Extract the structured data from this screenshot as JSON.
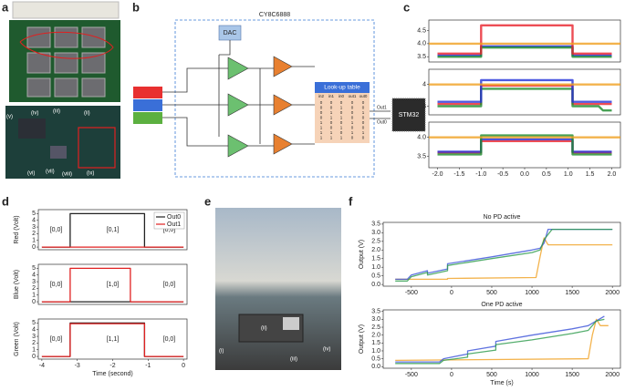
{
  "panel_labels": [
    "a",
    "b",
    "c",
    "d",
    "e",
    "f"
  ],
  "panel_a": {
    "labels": [
      "(i)",
      "(ii)",
      "(iii)",
      "(iv)",
      "(v)",
      "(vi)",
      "(vii)",
      "(viii)",
      "(ix)"
    ]
  },
  "panel_b": {
    "chip": "CY8C6888",
    "dac": "DAC",
    "lut_title": "Look-up table",
    "mcu": "STM32",
    "outputs": [
      "Out1",
      "Out0"
    ],
    "lut": {
      "header": [
        "in2",
        "in1",
        "in0",
        "out1",
        "out0"
      ],
      "rows": [
        [
          0,
          0,
          0,
          0,
          0
        ],
        [
          0,
          0,
          1,
          0,
          0
        ],
        [
          0,
          1,
          0,
          0,
          1
        ],
        [
          0,
          1,
          1,
          0,
          0
        ],
        [
          1,
          0,
          0,
          1,
          0
        ],
        [
          1,
          0,
          1,
          0,
          0
        ],
        [
          1,
          1,
          0,
          1,
          1
        ],
        [
          1,
          1,
          1,
          0,
          0
        ]
      ]
    }
  },
  "panel_e": {
    "labels": [
      "(i)",
      "(ii)",
      "(iii)",
      "(iv)"
    ]
  },
  "chart_data": [
    {
      "type": "line",
      "xlim": [
        -2.2,
        2.2
      ],
      "ylim": [
        3.3,
        4.9
      ],
      "yticks": [
        3.5,
        {
          "value": 4.0,
          "label": "4.0"
        },
        4.5
      ],
      "series": [
        {
          "color": "#2230d8",
          "x": [
            -2,
            -1,
            -1,
            1.1,
            1.1,
            2
          ],
          "values": [
            3.55,
            3.55,
            3.9,
            3.9,
            3.55,
            3.55
          ]
        },
        {
          "color": "#1a8a2a",
          "x": [
            -2,
            -1,
            -1,
            1.1,
            1.1,
            2
          ],
          "values": [
            3.5,
            3.5,
            3.85,
            3.85,
            3.5,
            3.5
          ]
        },
        {
          "color": "#e8202a",
          "x": [
            -2,
            -1,
            -1,
            1.1,
            1.1,
            2
          ],
          "values": [
            3.62,
            3.62,
            4.7,
            4.7,
            3.62,
            3.62
          ]
        },
        {
          "color": "#f0a020",
          "x": [
            -2.2,
            2.2
          ],
          "values": [
            4.0,
            4.0
          ]
        }
      ]
    },
    {
      "type": "line",
      "xlim": [
        -2.2,
        2.2
      ],
      "ylim": [
        2.6,
        4.7
      ],
      "yticks": [
        3,
        4
      ],
      "series": [
        {
          "color": "#e8202a",
          "x": [
            -2,
            -1,
            -1,
            1.1,
            1.1,
            2
          ],
          "values": [
            3.1,
            3.1,
            3.95,
            3.95,
            3.1,
            3.1
          ]
        },
        {
          "color": "#1a8a2a",
          "x": [
            -2,
            -1,
            -1,
            1.1,
            1.1,
            1.7,
            1.8,
            2
          ],
          "values": [
            3.0,
            3.0,
            3.8,
            3.8,
            3.0,
            3.0,
            2.8,
            2.8
          ]
        },
        {
          "color": "#2230d8",
          "x": [
            -2,
            -1,
            -1,
            1.1,
            1.1,
            2
          ],
          "values": [
            3.2,
            3.2,
            4.2,
            4.2,
            3.2,
            3.2
          ]
        },
        {
          "color": "#f0a020",
          "x": [
            -2.2,
            2.2
          ],
          "values": [
            4.0,
            4.0
          ]
        }
      ]
    },
    {
      "type": "line",
      "xlim": [
        -2.2,
        2.2
      ],
      "ylim": [
        3.2,
        4.4
      ],
      "xticks": [
        {
          "value": -2.0,
          "label": "-2.0"
        },
        -1.5,
        {
          "value": -1.0,
          "label": "-1.0"
        },
        -0.5,
        {
          "value": 0.0,
          "label": "0.0"
        },
        0.5,
        {
          "value": 1.0,
          "label": "1.0"
        },
        1.5,
        {
          "value": 2.0,
          "label": "2.0"
        }
      ],
      "yticks": [
        3.5,
        {
          "value": 4.0,
          "label": "4.0"
        }
      ],
      "series": [
        {
          "color": "#e8202a",
          "x": [
            -2,
            -1,
            -1,
            1.1,
            1.1,
            2
          ],
          "values": [
            3.6,
            3.6,
            3.9,
            3.9,
            3.6,
            3.6
          ]
        },
        {
          "color": "#2230d8",
          "x": [
            -2,
            -1,
            -1,
            1.1,
            1.1,
            2
          ],
          "values": [
            3.62,
            3.62,
            3.95,
            3.95,
            3.62,
            3.62
          ]
        },
        {
          "color": "#1a8a2a",
          "x": [
            -2,
            -1,
            -1,
            1.1,
            1.1,
            2
          ],
          "values": [
            3.55,
            3.55,
            4.05,
            4.05,
            3.55,
            3.55
          ]
        },
        {
          "color": "#f0a020",
          "x": [
            -2.2,
            2.2
          ],
          "values": [
            4.0,
            4.0
          ]
        }
      ]
    },
    {
      "type": "line",
      "xlim": [
        -4.1,
        0.1
      ],
      "ylim": [
        -0.4,
        5.6
      ],
      "yticks": [
        0,
        1,
        2,
        3,
        4,
        5
      ],
      "ylabel": "Red (Volt)",
      "legend": "upper right",
      "annotations": [
        "[0,0]",
        "[0,1]",
        "[0,0]"
      ],
      "series": [
        {
          "name": "Out0",
          "color": "#222222",
          "x": [
            -4,
            -3.2,
            -3.2,
            -1.1,
            -1.1,
            0
          ],
          "values": [
            0,
            0,
            5,
            5,
            0,
            0
          ]
        },
        {
          "name": "Out1",
          "color": "#e02020",
          "x": [
            -4,
            0
          ],
          "values": [
            0,
            0
          ]
        }
      ]
    },
    {
      "type": "line",
      "xlim": [
        -4.1,
        0.1
      ],
      "ylim": [
        -0.4,
        5.6
      ],
      "yticks": [
        0,
        1,
        2,
        3,
        4,
        5
      ],
      "ylabel": "Blue (Volt)",
      "annotations": [
        "[0,0]",
        "[1,0]",
        "[0,0]"
      ],
      "series": [
        {
          "color": "#222222",
          "x": [
            -4,
            0
          ],
          "values": [
            0,
            0
          ]
        },
        {
          "color": "#e02020",
          "x": [
            -4,
            -3.2,
            -3.2,
            -1.5,
            -1.5,
            0
          ],
          "values": [
            0,
            0,
            5,
            5,
            0,
            0
          ]
        }
      ]
    },
    {
      "type": "line",
      "xlim": [
        -4.1,
        0.1
      ],
      "ylim": [
        -0.4,
        5.6
      ],
      "xticks": [
        -4,
        -3,
        -2,
        -1,
        0
      ],
      "yticks": [
        0,
        1,
        2,
        3,
        4,
        5
      ],
      "ylabel": "Green (Volt)",
      "xlabel": "Time (second)",
      "annotations": [
        "[0,0]",
        "[1,1]",
        "[0,0]"
      ],
      "series": [
        {
          "color": "#222222",
          "x": [
            -4,
            -3.2,
            -3.2,
            -1.1,
            -1.1,
            0
          ],
          "values": [
            0,
            0,
            5,
            5,
            0,
            0
          ]
        },
        {
          "color": "#e02020",
          "x": [
            -4,
            -3.2,
            -3.2,
            -1.1,
            -1.1,
            0
          ],
          "values": [
            0,
            0,
            4.9,
            4.9,
            0,
            0
          ]
        }
      ]
    },
    {
      "type": "line",
      "title": "No PD active",
      "xlim": [
        -850,
        2100
      ],
      "ylim": [
        -0.1,
        3.6
      ],
      "ylabel": "Output (V)",
      "xticks": [
        -500,
        0,
        500,
        1000,
        1500,
        2000
      ],
      "yticks": [
        {
          "value": 0.0,
          "label": "0.0"
        },
        0.5,
        {
          "value": 1.0,
          "label": "1.0"
        },
        1.5,
        {
          "value": 2.0,
          "label": "2.0"
        },
        2.5,
        {
          "value": 3.0,
          "label": "3.0"
        },
        3.5
      ],
      "series": [
        {
          "color": "#f0a020",
          "x": [
            -700,
            -50,
            -50,
            1050,
            1100,
            1150,
            1200,
            2000
          ],
          "values": [
            0.3,
            0.3,
            0.35,
            0.4,
            1.6,
            2.7,
            2.3,
            2.3
          ]
        },
        {
          "color": "#3850d8",
          "x": [
            -700,
            -550,
            -500,
            -300,
            -300,
            -50,
            -50,
            500,
            1000,
            1100,
            1150,
            1200,
            2000
          ],
          "values": [
            0.3,
            0.3,
            0.55,
            0.8,
            0.65,
            0.9,
            1.2,
            1.6,
            2.0,
            2.1,
            2.4,
            3.2,
            3.2
          ]
        },
        {
          "color": "#2a9a4a",
          "x": [
            -700,
            -550,
            -500,
            -300,
            -300,
            -50,
            -50,
            500,
            1000,
            1100,
            1150,
            1250,
            2000
          ],
          "values": [
            0.2,
            0.2,
            0.45,
            0.7,
            0.55,
            0.8,
            1.1,
            1.5,
            1.85,
            2.0,
            2.6,
            3.2,
            3.2
          ]
        }
      ]
    },
    {
      "type": "line",
      "title": "One PD active",
      "xlim": [
        -850,
        2100
      ],
      "ylim": [
        -0.1,
        3.6
      ],
      "ylabel": "Output (V)",
      "xlabel": "Time (s)",
      "xticks": [
        -500,
        0,
        500,
        1000,
        1500,
        2000
      ],
      "yticks": [
        {
          "value": 0.0,
          "label": "0.0"
        },
        0.5,
        {
          "value": 1.0,
          "label": "1.0"
        },
        1.5,
        {
          "value": 2.0,
          "label": "2.0"
        },
        2.5,
        {
          "value": 3.0,
          "label": "3.0"
        },
        3.5
      ],
      "series": [
        {
          "color": "#f0a020",
          "x": [
            -700,
            1700,
            1750,
            1800,
            1850,
            1950
          ],
          "values": [
            0.4,
            0.5,
            2.0,
            3.0,
            2.6,
            2.6
          ]
        },
        {
          "color": "#3850d8",
          "x": [
            -700,
            -150,
            -100,
            200,
            200,
            550,
            550,
            1000,
            1500,
            1700,
            1800,
            1900
          ],
          "values": [
            0.3,
            0.3,
            0.5,
            0.8,
            1.0,
            1.3,
            1.6,
            2.0,
            2.4,
            2.6,
            2.9,
            3.2
          ]
        },
        {
          "color": "#2a9a4a",
          "x": [
            -700,
            -150,
            -100,
            200,
            200,
            550,
            550,
            1000,
            1500,
            1700,
            1800,
            1900
          ],
          "values": [
            0.2,
            0.2,
            0.4,
            0.6,
            0.8,
            1.05,
            1.4,
            1.7,
            2.1,
            2.3,
            2.9,
            3.0
          ]
        }
      ]
    }
  ]
}
